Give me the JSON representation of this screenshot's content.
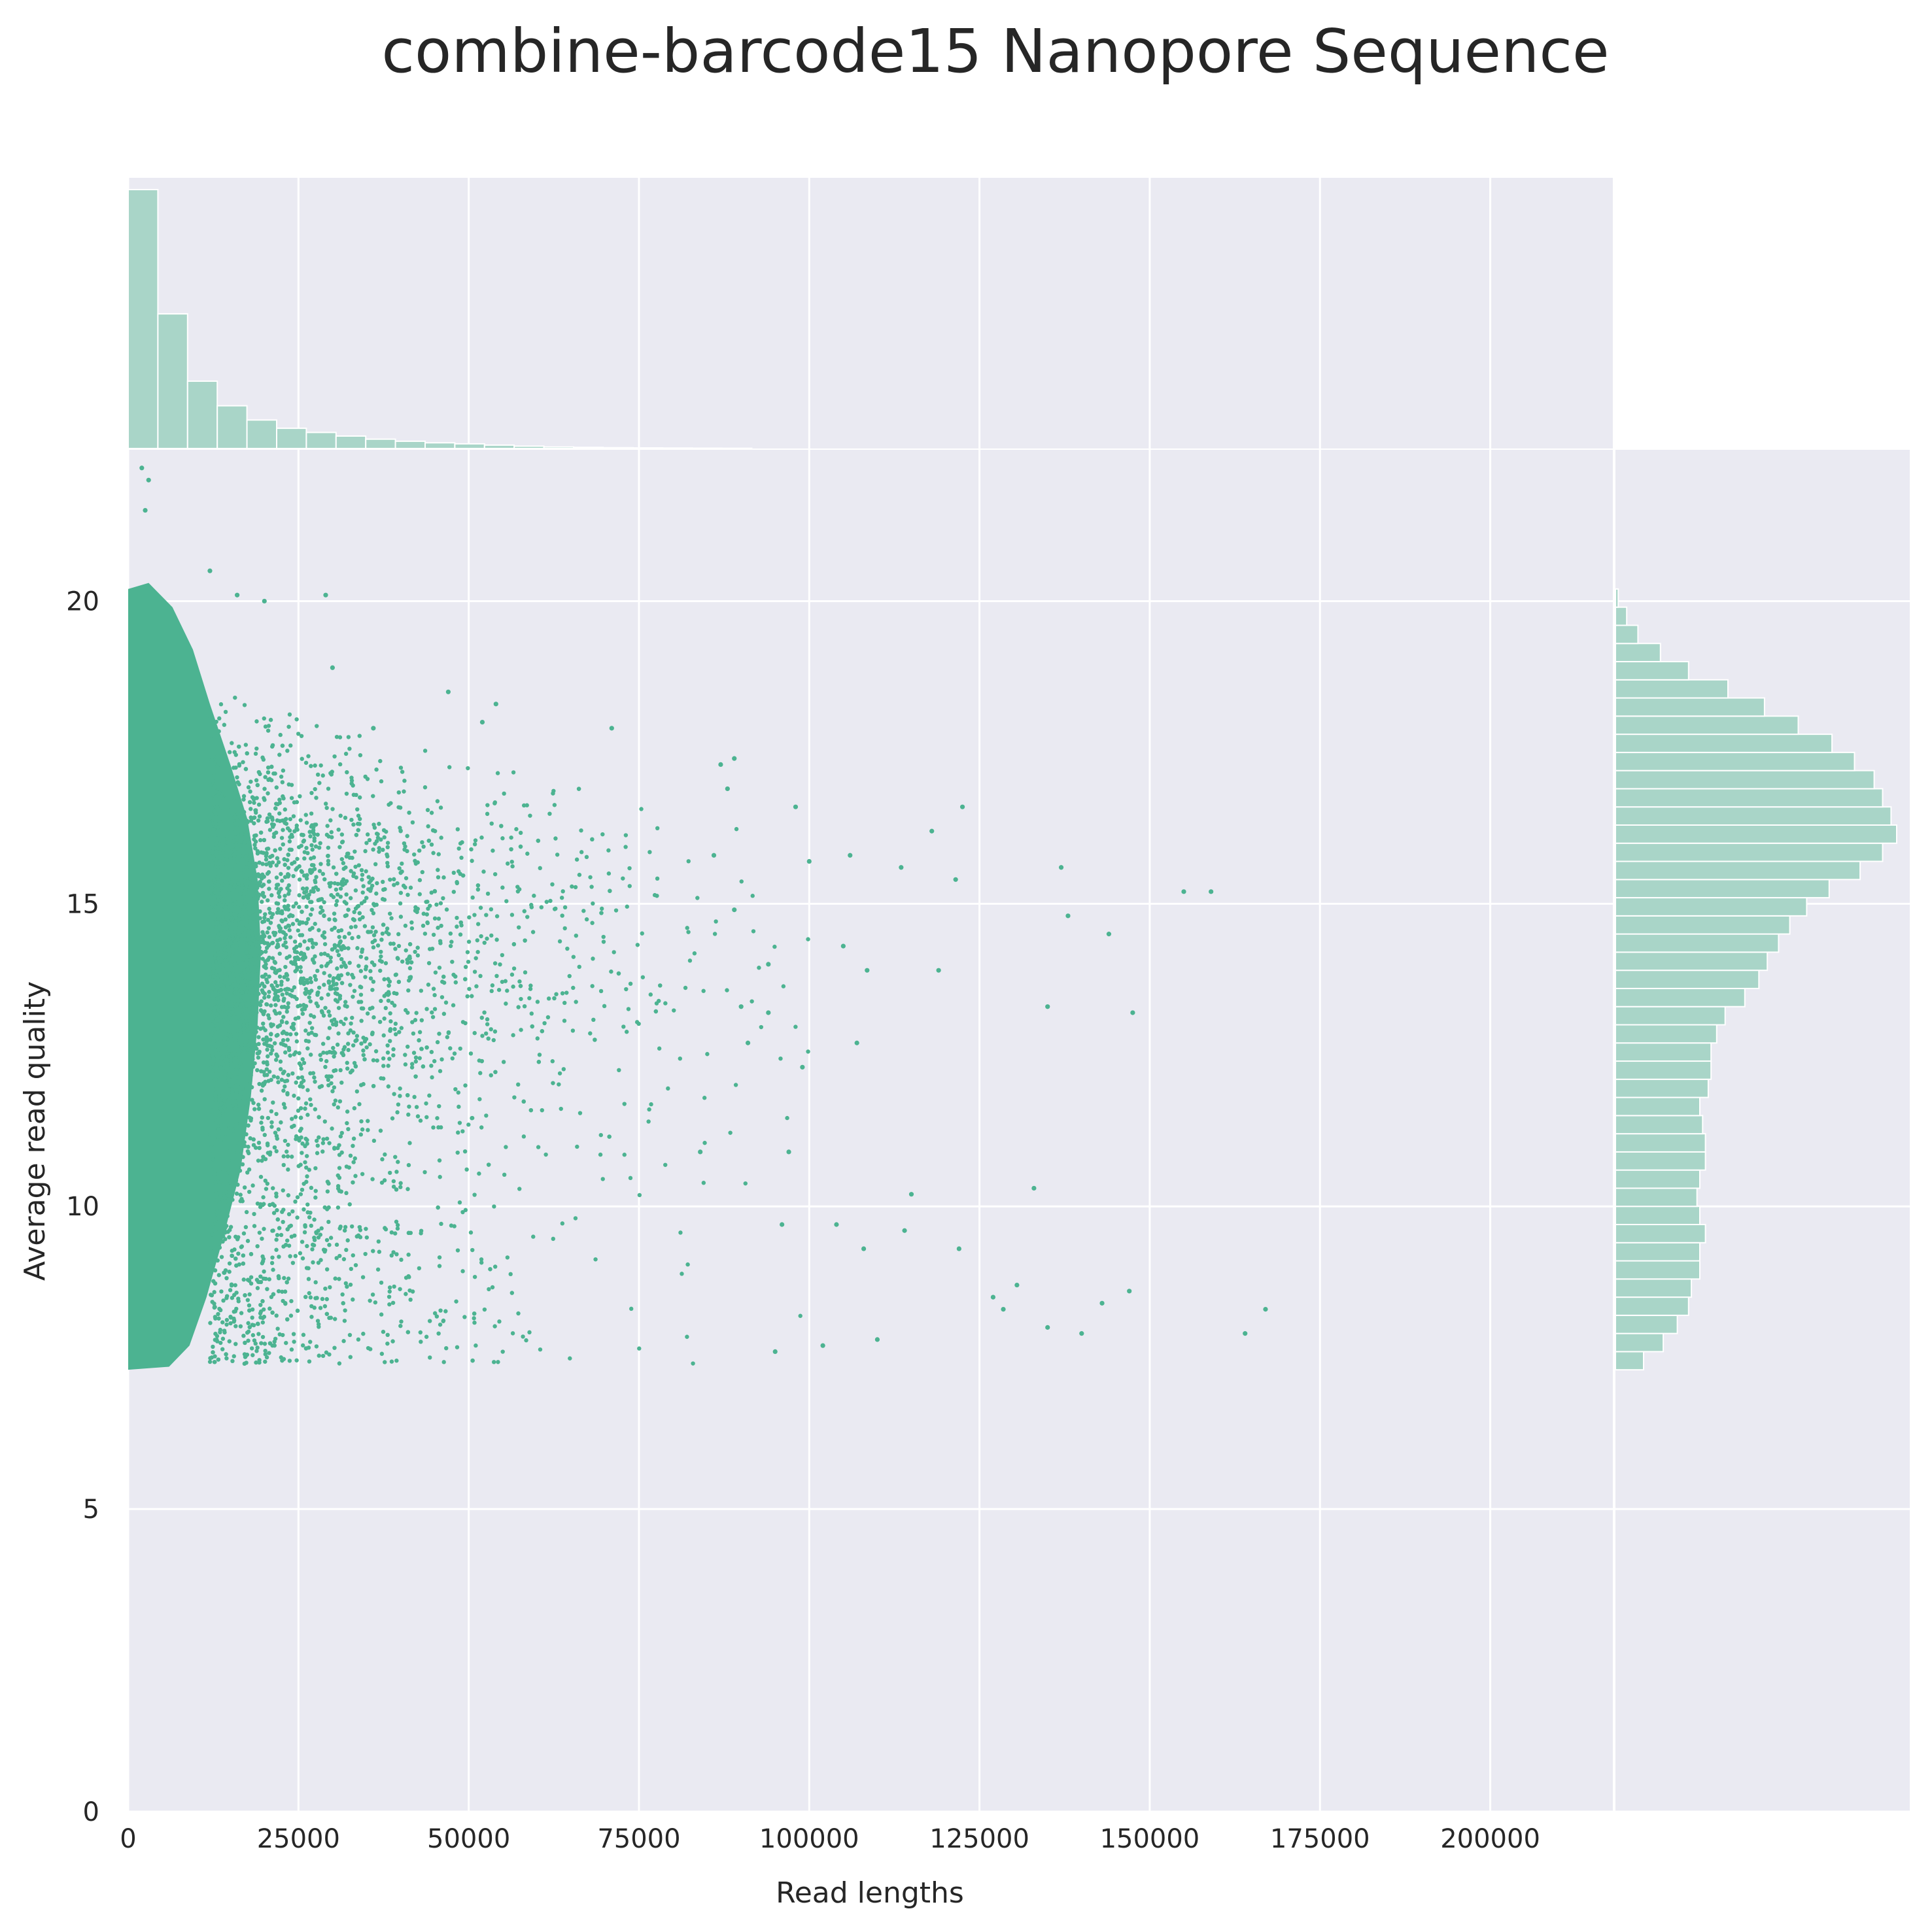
{
  "chart_data": {
    "type": "scatter",
    "title": "combine-barcode15 Nanopore Sequence",
    "xlabel": "Read lengths",
    "ylabel": "Average read quality",
    "xlim": [
      0,
      218000
    ],
    "ylim": [
      0,
      22.5
    ],
    "xticks": [
      0,
      25000,
      50000,
      75000,
      100000,
      125000,
      150000,
      175000,
      200000
    ],
    "yticks": [
      0,
      5,
      10,
      15,
      20
    ],
    "grid": true,
    "colors": {
      "points": "#4cb391",
      "hist": "#a9d5c8",
      "background": "#eaeaf2",
      "grid": "#ffffff",
      "text": "#262626"
    },
    "marginal_x": {
      "type": "histogram",
      "bin_width": 4360,
      "counts": [
        100,
        52,
        26,
        16.5,
        11,
        7.8,
        6.2,
        4.8,
        3.6,
        2.8,
        2.2,
        1.8,
        1.3,
        0.9,
        0.6,
        0.45,
        0.32,
        0.24,
        0.18,
        0.12,
        0.08
      ]
    },
    "marginal_y": {
      "type": "histogram",
      "bin_start": 7.3,
      "bin_width": 0.3,
      "counts": [
        10,
        17,
        22,
        26,
        27,
        30,
        30,
        32,
        30,
        29,
        30,
        32,
        32,
        31,
        30,
        33,
        34,
        34,
        36,
        39,
        46,
        51,
        54,
        58,
        62,
        68,
        76,
        87,
        95,
        100,
        98,
        95,
        92,
        85,
        77,
        65,
        53,
        40,
        26,
        16,
        8,
        4,
        1
      ]
    },
    "outliers": [
      [
        167000,
        8.3
      ],
      [
        164000,
        7.9
      ],
      [
        159000,
        15.2
      ],
      [
        155000,
        15.2
      ],
      [
        147000,
        8.6
      ],
      [
        147500,
        13.2
      ],
      [
        144000,
        14.5
      ],
      [
        143000,
        8.4
      ],
      [
        140000,
        7.9
      ],
      [
        138000,
        14.8
      ],
      [
        137000,
        15.6
      ],
      [
        135000,
        13.3
      ],
      [
        135000,
        8.0
      ],
      [
        133000,
        10.3
      ],
      [
        130500,
        8.7
      ],
      [
        128500,
        8.3
      ],
      [
        127000,
        8.5
      ],
      [
        122500,
        16.6
      ],
      [
        122000,
        9.3
      ],
      [
        121500,
        15.4
      ],
      [
        119000,
        13.9
      ],
      [
        118000,
        16.2
      ],
      [
        115000,
        10.2
      ],
      [
        114000,
        9.6
      ],
      [
        113500,
        15.6
      ],
      [
        110000,
        7.8
      ],
      [
        108500,
        13.9
      ],
      [
        108000,
        9.3
      ],
      [
        107000,
        12.7
      ],
      [
        106000,
        15.8
      ],
      [
        105000,
        14.3
      ],
      [
        104000,
        9.7
      ],
      [
        102000,
        7.7
      ],
      [
        100000,
        15.7
      ],
      [
        99000,
        12.3
      ],
      [
        98000,
        16.6
      ],
      [
        97000,
        10.9
      ],
      [
        96000,
        9.7
      ],
      [
        95000,
        7.6
      ],
      [
        94000,
        13.2
      ],
      [
        94000,
        14.0
      ],
      [
        91000,
        12.7
      ],
      [
        90000,
        13.3
      ],
      [
        89000,
        17.4
      ],
      [
        89000,
        14.9
      ],
      [
        88000,
        16.9
      ],
      [
        87000,
        17.3
      ],
      [
        86000,
        15.8
      ],
      [
        84000,
        10.9
      ],
      [
        71000,
        17.9
      ],
      [
        54000,
        18.3
      ],
      [
        52000,
        18.0
      ],
      [
        47000,
        18.5
      ],
      [
        29000,
        20.1
      ],
      [
        30000,
        18.9
      ],
      [
        36000,
        17.9
      ],
      [
        16000,
        20.1
      ],
      [
        20000,
        20.0
      ],
      [
        12000,
        20.5
      ],
      [
        2000,
        22.2
      ],
      [
        3000,
        22.0
      ],
      [
        2500,
        21.5
      ]
    ]
  }
}
